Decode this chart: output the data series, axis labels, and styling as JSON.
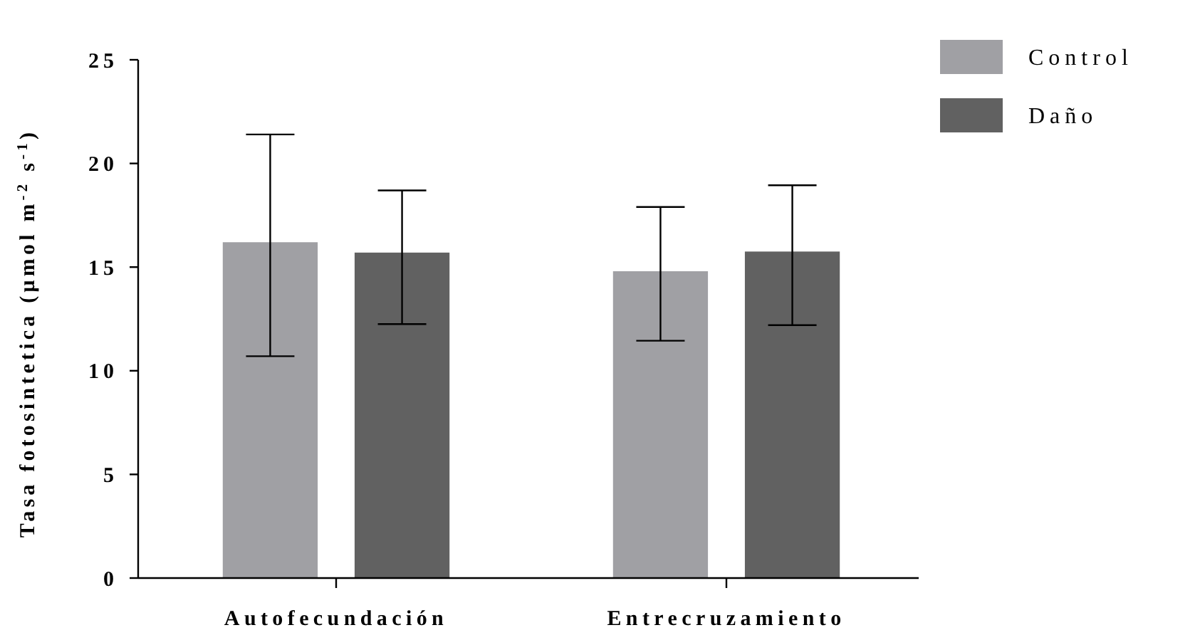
{
  "chart_data": {
    "type": "bar",
    "ylabel": "Tasa fotosintetica (µmol m$^{-2}$ s$^{-1}$)",
    "categories": [
      "Autofecundación",
      "Entrecruzamiento"
    ],
    "series": [
      {
        "name": "Control",
        "color": "#a0a0a4",
        "values": [
          16.2,
          14.8
        ],
        "errors": [
          [
            10.7,
            21.4
          ],
          [
            11.45,
            17.9
          ]
        ]
      },
      {
        "name": "Daño",
        "color": "#616161",
        "values": [
          15.7,
          15.75
        ],
        "errors": [
          [
            12.25,
            18.7
          ],
          [
            12.2,
            18.95
          ]
        ]
      }
    ],
    "ylim": [
      0,
      25
    ],
    "yticks": [
      0,
      5,
      10,
      15,
      20,
      25
    ],
    "grid": false,
    "legend": "top right"
  }
}
